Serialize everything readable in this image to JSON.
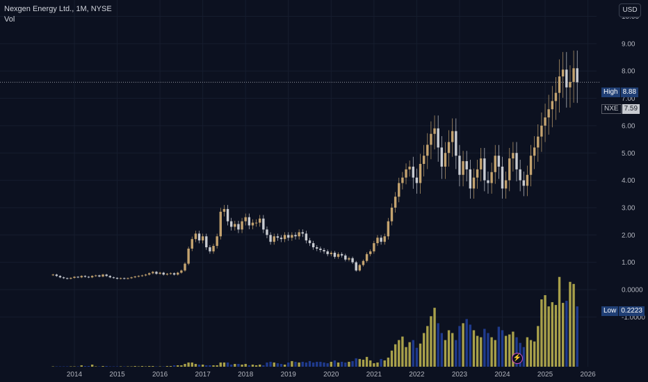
{
  "legend": {
    "title": "Nexgen Energy Ltd., 1M, NYSE",
    "volume_label": "Vol"
  },
  "currency_button": "USD",
  "price_tags": {
    "high_label": "High",
    "high_value": "8.88",
    "symbol": "NXE",
    "last_value": "7.59",
    "low_label": "Low",
    "low_value": "0.2223"
  },
  "event_icon": "lightning-icon",
  "colors": {
    "background": "#0c1120",
    "up_candle": "#c4a36f",
    "down_candle": "#c8cbd1",
    "up_volume": "#a8a04a",
    "down_volume": "#1f3a8c",
    "grid": "#161d2e",
    "high_tag": "#1f3e74",
    "last_tag": "#c8cbd1"
  },
  "chart_data": {
    "type": "candlestick",
    "title": "Nexgen Energy Ltd., 1M, NYSE",
    "interval": "1M",
    "y_ticks": [
      "10.00",
      "9.00",
      "8.00",
      "7.00",
      "6.00",
      "5.00",
      "4.00",
      "3.00",
      "2.00",
      "1.00",
      "0.0000",
      "-1.0000"
    ],
    "y_range": [
      -1.8,
      10.6
    ],
    "x_ticks": [
      "2014",
      "2015",
      "2016",
      "2017",
      "2018",
      "2019",
      "2020",
      "2021",
      "2022",
      "2023",
      "2024",
      "2025",
      "2026"
    ],
    "start": "2013-07",
    "last_price": 7.59,
    "high": 8.88,
    "low": 0.2223,
    "grid": true,
    "volume_series_name": "Vol",
    "close": [
      0.55,
      0.5,
      0.45,
      0.42,
      0.4,
      0.43,
      0.47,
      0.45,
      0.5,
      0.47,
      0.45,
      0.5,
      0.52,
      0.48,
      0.55,
      0.5,
      0.45,
      0.43,
      0.4,
      0.42,
      0.4,
      0.42,
      0.45,
      0.48,
      0.5,
      0.52,
      0.55,
      0.6,
      0.65,
      0.58,
      0.62,
      0.55,
      0.58,
      0.6,
      0.55,
      0.62,
      0.7,
      0.95,
      1.5,
      1.85,
      2.05,
      1.8,
      1.95,
      1.55,
      1.4,
      1.6,
      1.95,
      2.85,
      2.95,
      2.5,
      2.3,
      2.4,
      2.2,
      2.5,
      2.65,
      2.35,
      2.45,
      2.45,
      2.6,
      2.2,
      2.0,
      1.75,
      1.95,
      1.9,
      1.85,
      2.0,
      1.9,
      2.0,
      1.95,
      2.1,
      2.05,
      1.8,
      1.7,
      1.55,
      1.5,
      1.45,
      1.4,
      1.3,
      1.35,
      1.2,
      1.3,
      1.25,
      1.1,
      1.15,
      1.0,
      0.7,
      0.9,
      1.05,
      1.3,
      1.4,
      1.7,
      1.9,
      1.75,
      1.95,
      2.5,
      3.0,
      3.4,
      3.9,
      4.1,
      4.4,
      4.5,
      4.1,
      3.9,
      4.6,
      4.9,
      5.3,
      5.7,
      5.9,
      5.2,
      4.5,
      5.0,
      5.4,
      5.8,
      4.9,
      4.2,
      4.7,
      4.4,
      3.7,
      4.1,
      4.4,
      4.8,
      4.0,
      3.9,
      4.3,
      4.9,
      4.5,
      3.7,
      4.0,
      4.8,
      5.0,
      4.4,
      4.0,
      3.8,
      4.2,
      4.9,
      5.2,
      5.6,
      6.0,
      6.3,
      6.6,
      6.9,
      7.2,
      7.8,
      8.05,
      7.4,
      7.6,
      8.1,
      7.59
    ],
    "volume": [
      0.005,
      0.005,
      0.005,
      0.005,
      0.005,
      0.005,
      0.005,
      0.005,
      0.02,
      0.01,
      0.01,
      0.03,
      0.005,
      0.005,
      0.01,
      0.01,
      0.005,
      0.005,
      0.005,
      0.005,
      0.005,
      0.005,
      0.005,
      0.01,
      0.005,
      0.01,
      0.005,
      0.01,
      0.01,
      0.005,
      0.005,
      0.005,
      0.01,
      0.01,
      0.02,
      0.02,
      0.02,
      0.04,
      0.06,
      0.06,
      0.04,
      0.03,
      0.03,
      0.02,
      0.02,
      0.02,
      0.02,
      0.06,
      0.06,
      0.06,
      0.03,
      0.04,
      0.04,
      0.03,
      0.04,
      0.02,
      0.03,
      0.02,
      0.03,
      0.02,
      0.06,
      0.07,
      0.06,
      0.05,
      0.04,
      0.03,
      0.06,
      0.08,
      0.07,
      0.06,
      0.07,
      0.06,
      0.08,
      0.06,
      0.07,
      0.07,
      0.06,
      0.05,
      0.07,
      0.09,
      0.06,
      0.07,
      0.06,
      0.07,
      0.08,
      0.12,
      0.11,
      0.1,
      0.14,
      0.09,
      0.05,
      0.06,
      0.11,
      0.09,
      0.13,
      0.23,
      0.32,
      0.38,
      0.43,
      0.28,
      0.35,
      0.38,
      0.27,
      0.33,
      0.48,
      0.58,
      0.72,
      0.84,
      0.62,
      0.48,
      0.38,
      0.52,
      0.48,
      0.38,
      0.58,
      0.62,
      0.68,
      0.6,
      0.52,
      0.44,
      0.42,
      0.54,
      0.48,
      0.42,
      0.38,
      0.57,
      0.52,
      0.44,
      0.46,
      0.5,
      0.42,
      0.34,
      0.28,
      0.42,
      0.38,
      0.36,
      0.58,
      0.96,
      1.02,
      0.86,
      0.92,
      0.88,
      1.28,
      0.91,
      0.94,
      1.21,
      1.18,
      0.86
    ]
  }
}
